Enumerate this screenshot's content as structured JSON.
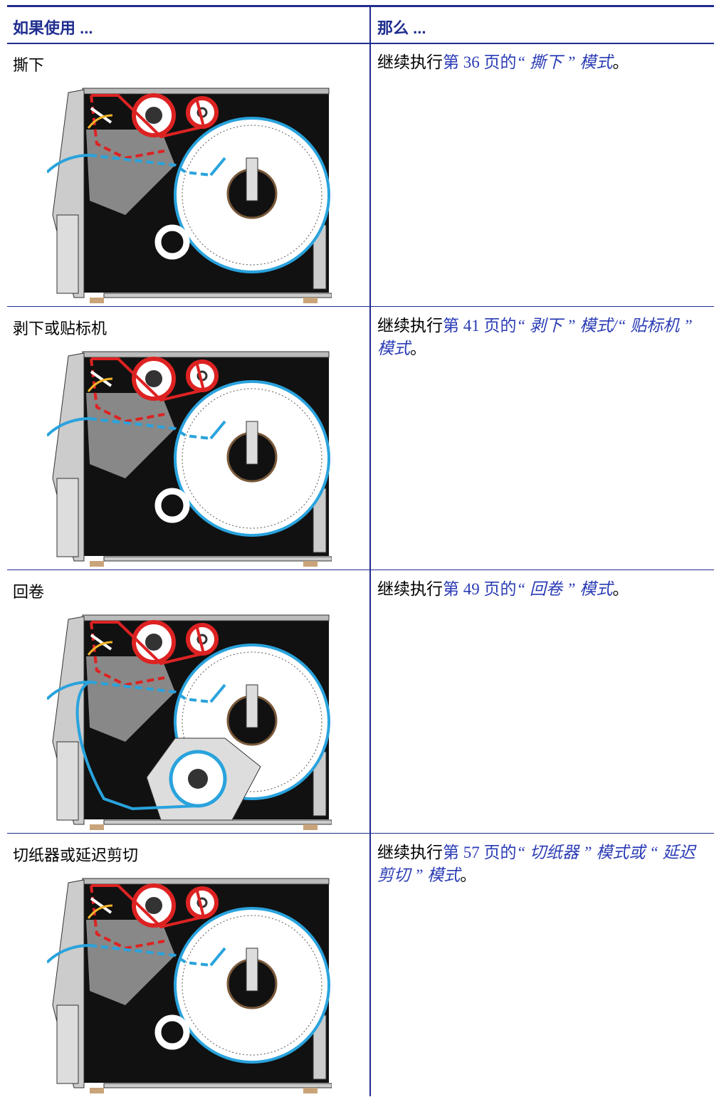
{
  "table": {
    "headers": [
      "如果使用 ...",
      "那么 ..."
    ],
    "rows": [
      {
        "mode": "撕下",
        "prefix": "继续执行",
        "link_page": "第 36 页的",
        "link_title": "“ 撕下 ” 模式",
        "suffix": "。"
      },
      {
        "mode": "剥下或贴标机",
        "prefix": "继续执行",
        "link_page": "第 41 页的",
        "link_title": "“ 剥下 ” 模式/“ 贴标机 ” 模式",
        "suffix": "。"
      },
      {
        "mode": "回卷",
        "prefix": "继续执行",
        "link_page": "第 49 页的",
        "link_title": "“ 回卷 ” 模式",
        "suffix": "。"
      },
      {
        "mode": "切纸器或延迟剪切",
        "prefix": "继续执行",
        "link_page": "第 57 页的",
        "link_title": "“ 切纸器 ” 模式或 “ 延迟剪切 ” 模式",
        "suffix": "。"
      }
    ]
  }
}
